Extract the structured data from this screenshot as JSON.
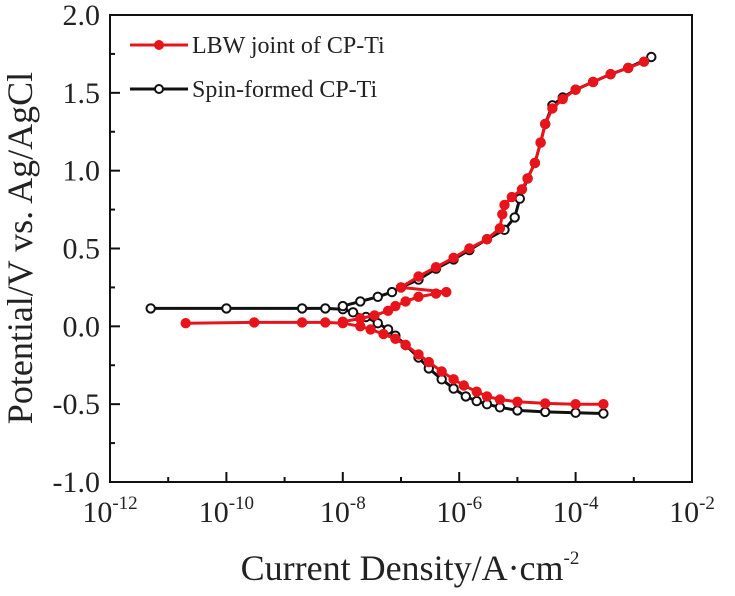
{
  "chart_data": {
    "type": "line",
    "xlabel": "Current Density/A·cm",
    "xlabel_exponent": "-2",
    "ylabel": "Potential/V vs. Ag/AgCl",
    "x_scale": "log",
    "xlim": [
      1e-12,
      0.01
    ],
    "ylim": [
      -1.0,
      2.0
    ],
    "x_tick_values": [
      1e-12,
      1e-10,
      1e-08,
      1e-06,
      0.0001,
      0.01
    ],
    "x_tick_base": "10",
    "x_tick_exponents": [
      "-12",
      "-10",
      "-8",
      "-6",
      "-4",
      "-2"
    ],
    "y_ticks": [
      2.0,
      1.5,
      1.0,
      0.5,
      0.0,
      -0.5,
      -1.0
    ],
    "y_tick_labels": [
      "2.0",
      "1.5",
      "1.0",
      "0.5",
      "0.0",
      "-0.5",
      "-1.0"
    ],
    "grid": false,
    "legend_position": "top-left",
    "series": [
      {
        "name": "LBW joint of CP-Ti",
        "color": "#e8141c",
        "marker_fill": "#e8141c",
        "cathodic": [
          [
            2e-11,
            0.02
          ],
          [
            3e-10,
            0.025
          ],
          [
            2e-09,
            0.025
          ],
          [
            5e-09,
            0.025
          ],
          [
            1e-08,
            0.02
          ],
          [
            2e-08,
            0.0
          ],
          [
            3e-08,
            -0.02
          ],
          [
            5e-08,
            -0.05
          ],
          [
            8e-08,
            -0.08
          ],
          [
            1.2e-07,
            -0.12
          ],
          [
            2e-07,
            -0.18
          ],
          [
            3e-07,
            -0.23
          ],
          [
            5e-07,
            -0.29
          ],
          [
            8e-07,
            -0.34
          ],
          [
            1.2e-06,
            -0.38
          ],
          [
            2e-06,
            -0.42
          ],
          [
            3e-06,
            -0.45
          ],
          [
            5e-06,
            -0.47
          ],
          [
            1e-05,
            -0.485
          ],
          [
            3e-05,
            -0.495
          ],
          [
            0.0001,
            -0.5
          ],
          [
            0.0003,
            -0.5
          ]
        ],
        "anodic": [
          [
            1e-08,
            0.03
          ],
          [
            2e-08,
            0.05
          ],
          [
            3.5e-08,
            0.07
          ],
          [
            6e-08,
            0.1
          ],
          [
            8e-08,
            0.13
          ],
          [
            1.2e-07,
            0.16
          ],
          [
            2e-07,
            0.19
          ],
          [
            4e-07,
            0.21
          ],
          [
            6e-07,
            0.22
          ],
          [
            1e-07,
            0.25
          ],
          [
            2e-07,
            0.32
          ],
          [
            4e-07,
            0.38
          ],
          [
            8e-07,
            0.44
          ],
          [
            1.5e-06,
            0.5
          ],
          [
            3e-06,
            0.56
          ],
          [
            5e-06,
            0.63
          ],
          [
            5.5e-06,
            0.72
          ],
          [
            6e-06,
            0.78
          ],
          [
            8e-06,
            0.83
          ],
          [
            1.2e-05,
            0.88
          ],
          [
            1.5e-05,
            0.95
          ],
          [
            2e-05,
            1.05
          ],
          [
            2.5e-05,
            1.18
          ],
          [
            3e-05,
            1.3
          ],
          [
            4e-05,
            1.4
          ],
          [
            6e-05,
            1.46
          ],
          [
            0.0001,
            1.52
          ],
          [
            0.0002,
            1.57
          ],
          [
            0.0004,
            1.62
          ],
          [
            0.0008,
            1.66
          ],
          [
            0.0015,
            1.7
          ]
        ]
      },
      {
        "name": "Spin-formed CP-Ti",
        "color": "#111111",
        "marker_fill": "#ffffff",
        "cathodic": [
          [
            5e-12,
            0.115
          ],
          [
            1e-10,
            0.115
          ],
          [
            2e-09,
            0.115
          ],
          [
            5e-09,
            0.115
          ],
          [
            1e-08,
            0.11
          ],
          [
            1.5e-08,
            0.09
          ],
          [
            2.5e-08,
            0.06
          ],
          [
            4e-08,
            0.02
          ],
          [
            6e-08,
            -0.02
          ],
          [
            8e-08,
            -0.06
          ],
          [
            1.2e-07,
            -0.12
          ],
          [
            2e-07,
            -0.2
          ],
          [
            3e-07,
            -0.27
          ],
          [
            5e-07,
            -0.34
          ],
          [
            8e-07,
            -0.4
          ],
          [
            1.3e-06,
            -0.45
          ],
          [
            2e-06,
            -0.48
          ],
          [
            3e-06,
            -0.5
          ],
          [
            5e-06,
            -0.52
          ],
          [
            1e-05,
            -0.54
          ],
          [
            3e-05,
            -0.55
          ],
          [
            0.0001,
            -0.555
          ],
          [
            0.0003,
            -0.56
          ]
        ],
        "anodic": [
          [
            1e-08,
            0.13
          ],
          [
            2e-08,
            0.16
          ],
          [
            4e-08,
            0.19
          ],
          [
            7e-08,
            0.22
          ],
          [
            1e-07,
            0.25
          ],
          [
            2e-07,
            0.3
          ],
          [
            4e-07,
            0.37
          ],
          [
            8e-07,
            0.43
          ],
          [
            1.5e-06,
            0.49
          ],
          [
            3e-06,
            0.56
          ],
          [
            6e-06,
            0.62
          ],
          [
            9e-06,
            0.7
          ],
          [
            1.1e-05,
            0.82
          ],
          [
            1.5e-05,
            0.95
          ],
          [
            2e-05,
            1.05
          ],
          [
            2.5e-05,
            1.18
          ],
          [
            3e-05,
            1.3
          ],
          [
            4e-05,
            1.42
          ],
          [
            6e-05,
            1.47
          ],
          [
            0.0001,
            1.52
          ],
          [
            0.0002,
            1.57
          ],
          [
            0.0004,
            1.62
          ],
          [
            0.0008,
            1.66
          ],
          [
            0.002,
            1.73
          ]
        ]
      }
    ]
  }
}
